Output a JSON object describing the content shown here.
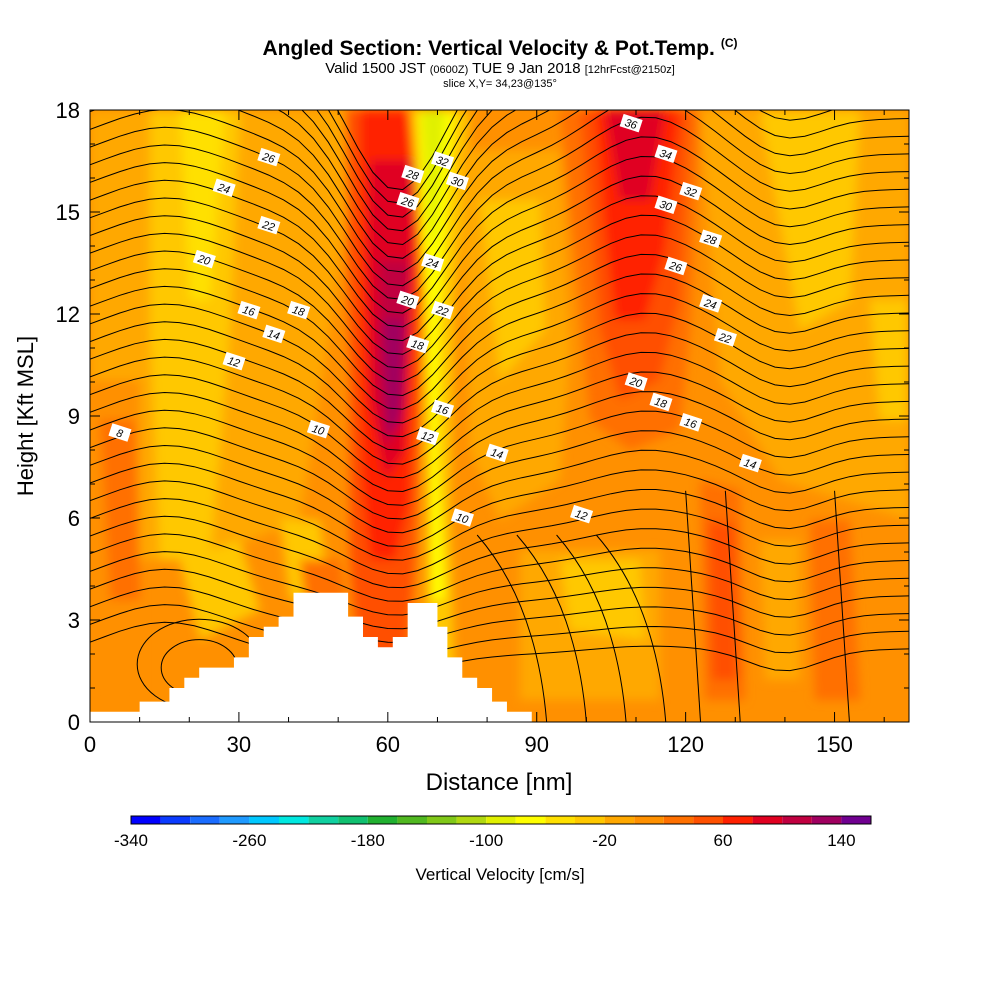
{
  "title": "Angled Section: Vertical Velocity & Pot.Temp.",
  "title_mark": "(C)",
  "subtitle": {
    "part1": "Valid 1500 JST",
    "utc": "(0600Z)",
    "part2": "TUE 9 Jan 2018",
    "fcst": "[12hrFcst@2150z]"
  },
  "slice_note": "slice X,Y= 34,23@135°",
  "chart_data": {
    "type": "heatmap",
    "xlabel": "Distance [nm]",
    "ylabel": "Height [Kft MSL]",
    "xlim": [
      0,
      165
    ],
    "ylim": [
      0,
      18
    ],
    "xticks": [
      0,
      30,
      60,
      90,
      120,
      150
    ],
    "yticks": [
      0,
      3,
      6,
      9,
      12,
      15,
      18
    ],
    "colorbar": {
      "label": "Vertical Velocity [cm/s]",
      "ticks": [
        -340,
        -260,
        -180,
        -100,
        -20,
        60,
        140
      ],
      "levels": [
        -340,
        -320,
        -300,
        -280,
        -260,
        -240,
        -220,
        -200,
        -180,
        -160,
        -140,
        -120,
        -100,
        -80,
        -60,
        -40,
        -20,
        0,
        20,
        40,
        60,
        80,
        100,
        120,
        140,
        160
      ],
      "colors": [
        "#0000ff",
        "#0b3bff",
        "#1a6cff",
        "#1f9aff",
        "#00c8ff",
        "#00e8e0",
        "#10d0a0",
        "#10c070",
        "#20b030",
        "#50b820",
        "#80c818",
        "#b0d810",
        "#e0f000",
        "#ffff00",
        "#ffe000",
        "#ffc800",
        "#ffa800",
        "#ff9000",
        "#ff7000",
        "#ff5000",
        "#ff2000",
        "#e00020",
        "#c00040",
        "#a00060",
        "#700090"
      ]
    },
    "terrain_kft": [
      [
        0,
        0.3
      ],
      [
        10,
        0.3
      ],
      [
        10,
        0.6
      ],
      [
        16,
        0.6
      ],
      [
        16,
        1.0
      ],
      [
        19,
        1.0
      ],
      [
        19,
        1.3
      ],
      [
        22,
        1.3
      ],
      [
        22,
        1.6
      ],
      [
        29,
        1.6
      ],
      [
        29,
        1.9
      ],
      [
        32,
        1.9
      ],
      [
        32,
        2.5
      ],
      [
        35,
        2.5
      ],
      [
        35,
        2.8
      ],
      [
        38,
        2.8
      ],
      [
        38,
        3.1
      ],
      [
        41,
        3.1
      ],
      [
        41,
        3.8
      ],
      [
        52,
        3.8
      ],
      [
        52,
        3.1
      ],
      [
        55,
        3.1
      ],
      [
        55,
        2.5
      ],
      [
        58,
        2.5
      ],
      [
        58,
        2.2
      ],
      [
        61,
        2.2
      ],
      [
        61,
        2.5
      ],
      [
        64,
        2.5
      ],
      [
        64,
        3.5
      ],
      [
        70,
        3.5
      ],
      [
        70,
        2.8
      ],
      [
        72,
        2.8
      ],
      [
        72,
        1.9
      ],
      [
        75,
        1.9
      ],
      [
        75,
        1.3
      ],
      [
        78,
        1.3
      ],
      [
        78,
        1.0
      ],
      [
        81,
        1.0
      ],
      [
        81,
        0.6
      ],
      [
        84,
        0.6
      ],
      [
        84,
        0.3
      ],
      [
        89,
        0.3
      ]
    ],
    "theta_labels": [
      {
        "x": 6,
        "y": 8.5,
        "v": "8"
      },
      {
        "x": 29,
        "y": 10.6,
        "v": "12"
      },
      {
        "x": 37,
        "y": 11.4,
        "v": "14"
      },
      {
        "x": 32,
        "y": 12.1,
        "v": "16"
      },
      {
        "x": 42,
        "y": 12.1,
        "v": "18"
      },
      {
        "x": 46,
        "y": 8.6,
        "v": "10"
      },
      {
        "x": 23,
        "y": 13.6,
        "v": "20"
      },
      {
        "x": 36,
        "y": 14.6,
        "v": "22"
      },
      {
        "x": 27,
        "y": 15.7,
        "v": "24"
      },
      {
        "x": 36,
        "y": 16.6,
        "v": "26"
      },
      {
        "x": 65,
        "y": 16.1,
        "v": "28"
      },
      {
        "x": 64,
        "y": 15.3,
        "v": "26"
      },
      {
        "x": 71,
        "y": 16.5,
        "v": "32"
      },
      {
        "x": 74,
        "y": 15.9,
        "v": "30"
      },
      {
        "x": 69,
        "y": 13.5,
        "v": "24"
      },
      {
        "x": 64,
        "y": 12.4,
        "v": "20"
      },
      {
        "x": 71,
        "y": 12.1,
        "v": "22"
      },
      {
        "x": 66,
        "y": 11.1,
        "v": "18"
      },
      {
        "x": 71,
        "y": 9.2,
        "v": "16"
      },
      {
        "x": 68,
        "y": 8.4,
        "v": "12"
      },
      {
        "x": 82,
        "y": 7.9,
        "v": "14"
      },
      {
        "x": 75,
        "y": 6.0,
        "v": "10"
      },
      {
        "x": 99,
        "y": 6.1,
        "v": "12"
      },
      {
        "x": 109,
        "y": 17.6,
        "v": "36"
      },
      {
        "x": 116,
        "y": 16.7,
        "v": "34"
      },
      {
        "x": 121,
        "y": 15.6,
        "v": "32"
      },
      {
        "x": 116,
        "y": 15.2,
        "v": "30"
      },
      {
        "x": 125,
        "y": 14.2,
        "v": "28"
      },
      {
        "x": 118,
        "y": 13.4,
        "v": "26"
      },
      {
        "x": 125,
        "y": 12.3,
        "v": "24"
      },
      {
        "x": 128,
        "y": 11.3,
        "v": "22"
      },
      {
        "x": 110,
        "y": 10.0,
        "v": "20"
      },
      {
        "x": 115,
        "y": 9.4,
        "v": "18"
      },
      {
        "x": 121,
        "y": 8.8,
        "v": "16"
      },
      {
        "x": 133,
        "y": 7.6,
        "v": "14"
      }
    ]
  }
}
